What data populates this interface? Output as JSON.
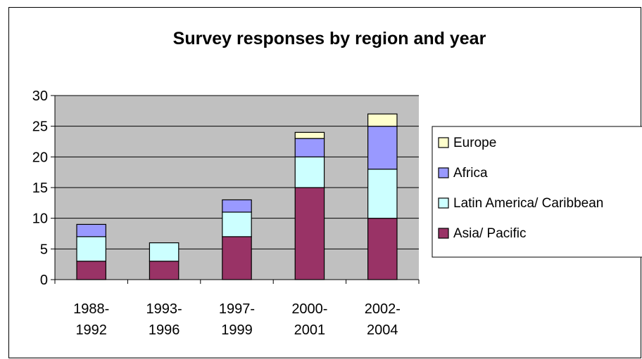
{
  "chart_data": {
    "type": "bar",
    "stacked": true,
    "title": "Survey responses by region and year",
    "xlabel": "",
    "ylabel": "",
    "categories": [
      [
        "1988-",
        "1992"
      ],
      [
        "1993-",
        "1996"
      ],
      [
        "1997-",
        "1999"
      ],
      [
        "2000-",
        "2001"
      ],
      [
        "2002-",
        "2004"
      ]
    ],
    "ylim": [
      0,
      30
    ],
    "yticks": [
      0,
      5,
      10,
      15,
      20,
      25,
      30
    ],
    "grid": true,
    "legend_position": "right",
    "plot_background": "#c0c0c0",
    "series": [
      {
        "name": "Asia/ Pacific",
        "color": "#993366",
        "values": [
          3,
          3,
          7,
          15,
          10
        ]
      },
      {
        "name": "Latin America/ Caribbean",
        "color": "#ccffff",
        "values": [
          4,
          3,
          4,
          5,
          8
        ]
      },
      {
        "name": "Africa",
        "color": "#9999ff",
        "values": [
          2,
          0,
          2,
          3,
          7
        ]
      },
      {
        "name": "Europe",
        "color": "#ffffcc",
        "values": [
          0,
          0,
          0,
          1,
          2
        ]
      }
    ],
    "legend_order": [
      "Europe",
      "Africa",
      "Latin America/ Caribbean",
      "Asia/ Pacific"
    ]
  }
}
